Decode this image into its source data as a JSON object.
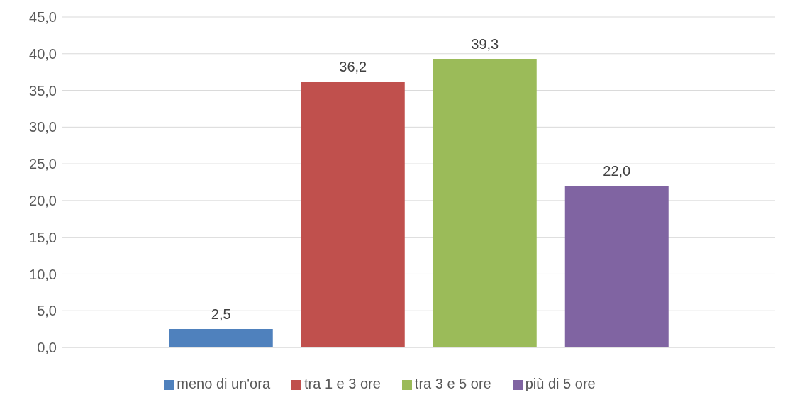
{
  "chart_data": {
    "type": "bar",
    "categories": [
      null
    ],
    "series": [
      {
        "name": "meno di un'ora",
        "color": "#4f81bd",
        "values": [
          2.5
        ],
        "value_labels": [
          "2,5"
        ]
      },
      {
        "name": "tra 1 e 3 ore",
        "color": "#c0504d",
        "values": [
          36.2
        ],
        "value_labels": [
          "36,2"
        ]
      },
      {
        "name": "tra 3 e 5 ore",
        "color": "#9bbb59",
        "values": [
          39.3
        ],
        "value_labels": [
          "39,3"
        ]
      },
      {
        "name": "più di 5 ore",
        "color": "#8064a2",
        "values": [
          22.0
        ],
        "value_labels": [
          "22,0"
        ]
      }
    ],
    "ylim": [
      0,
      45
    ],
    "yticks": [
      {
        "value": 0,
        "label": "0,0"
      },
      {
        "value": 5,
        "label": "5,0"
      },
      {
        "value": 10,
        "label": "10,0"
      },
      {
        "value": 15,
        "label": "15,0"
      },
      {
        "value": 20,
        "label": "20,0"
      },
      {
        "value": 25,
        "label": "25,0"
      },
      {
        "value": 30,
        "label": "30,0"
      },
      {
        "value": 35,
        "label": "35,0"
      },
      {
        "value": 40,
        "label": "40,0"
      },
      {
        "value": 45,
        "label": "45,0"
      }
    ],
    "grid": "y",
    "legend": "bottom"
  }
}
